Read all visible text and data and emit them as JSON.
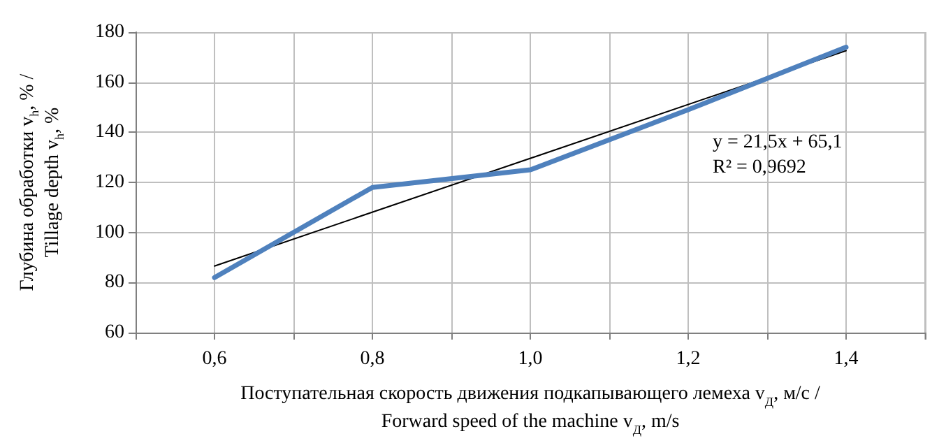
{
  "chart_data": {
    "type": "line",
    "xlabel": "Поступательная скорость движения подкапывающего лемеха v$_{Д}$, м/с /\nForward speed of the machine v$_{Д}$, m/s",
    "ylabel": "Глубина обработки v$_{h}$, % /\nTillage depth v$_{h}$, %",
    "x": [
      0.6,
      0.8,
      1.0,
      1.2,
      1.4
    ],
    "series": [
      {
        "color": "#4f81bd",
        "values": [
          82,
          118,
          125,
          149,
          174
        ]
      },
      {
        "type": "line",
        "color": "#000000",
        "x": [
          0.6,
          1.4
        ],
        "values": [
          86.6,
          172.6
        ]
      }
    ],
    "annotations": [
      "y = 21,5x + 65,1",
      "R² = 0,9692"
    ],
    "xlim": [
      0.5,
      1.5
    ],
    "xticks": [
      {
        "value": 0.5,
        "label": null
      },
      {
        "value": 0.6,
        "label": "0,6"
      },
      {
        "value": 0.7,
        "label": null
      },
      {
        "value": 0.8,
        "label": "0,8"
      },
      {
        "value": 0.9,
        "label": null
      },
      {
        "value": 1.0,
        "label": "1,0"
      },
      {
        "value": 1.1,
        "label": null
      },
      {
        "value": 1.2,
        "label": "1,2"
      },
      {
        "value": 1.3,
        "label": null
      },
      {
        "value": 1.4,
        "label": "1,4"
      },
      {
        "value": 1.5,
        "label": null
      }
    ],
    "ylim": [
      60,
      180
    ],
    "yticks": [
      60,
      80,
      100,
      120,
      140,
      160,
      180
    ],
    "grid": true,
    "marker": "none",
    "line_style": "solid"
  }
}
